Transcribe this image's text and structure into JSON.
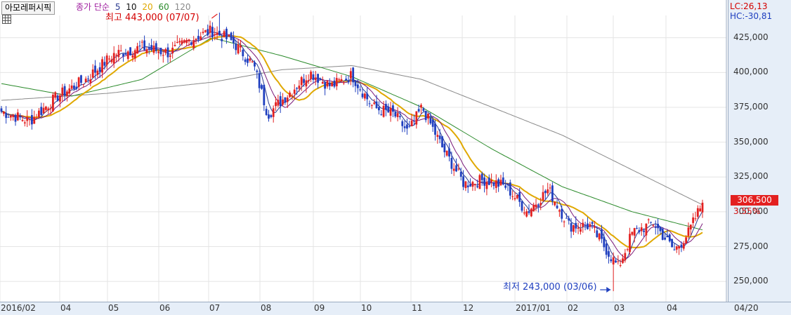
{
  "header": {
    "tab_label": "아모레퍼시픽",
    "legend": {
      "prefix": "종가 단순",
      "periods": [
        "5",
        "10",
        "20",
        "60",
        "120"
      ]
    }
  },
  "right_panel": {
    "lc_label": "LC:26,13",
    "hc_label": "HC:-30,81",
    "last_price_label": "306,500",
    "change_pct_label": "3.55%"
  },
  "colors": {
    "up": "#e32020",
    "down": "#1f3fbf",
    "ma5": "#2a3a8f",
    "ma10": "#7a1a7a",
    "ma20": "#e0a800",
    "ma60": "#2a8a2a",
    "ma120": "#8a8a8a",
    "legend_prefix": "#a020a0",
    "legend_5": "#2a3a8f",
    "legend_10": "#111111",
    "legend_20": "#e0a800",
    "legend_60": "#2a8a2a",
    "legend_120": "#8a8a8a"
  },
  "chart_data": {
    "type": "candlestick",
    "series_name": "아모레퍼시픽",
    "ylim": [
      240000,
      445000
    ],
    "yticks": [
      {
        "value": 425000,
        "label": "425,000"
      },
      {
        "value": 400000,
        "label": "400,000"
      },
      {
        "value": 375000,
        "label": "375,000"
      },
      {
        "value": 350000,
        "label": "350,000"
      },
      {
        "value": 325000,
        "label": "325,000"
      },
      {
        "value": 300000,
        "label": "300,000"
      },
      {
        "value": 275000,
        "label": "275,000"
      },
      {
        "value": 250000,
        "label": "250,000"
      }
    ],
    "xticks": [
      "2016/02",
      "04",
      "05",
      "06",
      "07",
      "08",
      "09",
      "10",
      "11",
      "12",
      "2017/01",
      "02",
      "03",
      "04",
      "04/20"
    ],
    "close_anchors": [
      {
        "t": 0,
        "v": 372000
      },
      {
        "t": 0.04,
        "v": 365000
      },
      {
        "t": 0.08,
        "v": 383000
      },
      {
        "t": 0.12,
        "v": 395000
      },
      {
        "t": 0.16,
        "v": 413000
      },
      {
        "t": 0.2,
        "v": 418000
      },
      {
        "t": 0.24,
        "v": 414000
      },
      {
        "t": 0.27,
        "v": 424000
      },
      {
        "t": 0.3,
        "v": 430000
      },
      {
        "t": 0.33,
        "v": 422000
      },
      {
        "t": 0.36,
        "v": 405000
      },
      {
        "t": 0.38,
        "v": 370000
      },
      {
        "t": 0.41,
        "v": 385000
      },
      {
        "t": 0.44,
        "v": 400000
      },
      {
        "t": 0.47,
        "v": 390000
      },
      {
        "t": 0.5,
        "v": 398000
      },
      {
        "t": 0.53,
        "v": 375000
      },
      {
        "t": 0.56,
        "v": 370000
      },
      {
        "t": 0.58,
        "v": 357000
      },
      {
        "t": 0.6,
        "v": 375000
      },
      {
        "t": 0.63,
        "v": 345000
      },
      {
        "t": 0.66,
        "v": 320000
      },
      {
        "t": 0.69,
        "v": 323000
      },
      {
        "t": 0.72,
        "v": 318000
      },
      {
        "t": 0.75,
        "v": 300000
      },
      {
        "t": 0.78,
        "v": 316000
      },
      {
        "t": 0.81,
        "v": 290000
      },
      {
        "t": 0.84,
        "v": 290000
      },
      {
        "t": 0.86,
        "v": 275000
      },
      {
        "t": 0.88,
        "v": 260000
      },
      {
        "t": 0.9,
        "v": 285000
      },
      {
        "t": 0.93,
        "v": 292000
      },
      {
        "t": 0.96,
        "v": 272000
      },
      {
        "t": 0.98,
        "v": 285000
      },
      {
        "t": 1,
        "v": 306500
      }
    ],
    "ma60_anchors": [
      {
        "t": 0,
        "v": 392000
      },
      {
        "t": 0.1,
        "v": 383000
      },
      {
        "t": 0.2,
        "v": 395000
      },
      {
        "t": 0.3,
        "v": 425000
      },
      {
        "t": 0.4,
        "v": 412000
      },
      {
        "t": 0.5,
        "v": 397000
      },
      {
        "t": 0.6,
        "v": 375000
      },
      {
        "t": 0.7,
        "v": 345000
      },
      {
        "t": 0.8,
        "v": 318000
      },
      {
        "t": 0.9,
        "v": 300000
      },
      {
        "t": 1,
        "v": 287000
      }
    ],
    "ma120_anchors": [
      {
        "t": 0,
        "v": 380000
      },
      {
        "t": 0.15,
        "v": 385000
      },
      {
        "t": 0.3,
        "v": 393000
      },
      {
        "t": 0.4,
        "v": 402000
      },
      {
        "t": 0.5,
        "v": 405000
      },
      {
        "t": 0.6,
        "v": 395000
      },
      {
        "t": 0.7,
        "v": 375000
      },
      {
        "t": 0.8,
        "v": 355000
      },
      {
        "t": 0.9,
        "v": 330000
      },
      {
        "t": 1,
        "v": 305000
      }
    ],
    "high_annotation": {
      "label": "최고 443,000 (07/07)",
      "value": 443000,
      "t": 0.31
    },
    "low_annotation": {
      "label": "최저 243,000 (03/06)",
      "value": 243000,
      "t": 0.872
    }
  }
}
